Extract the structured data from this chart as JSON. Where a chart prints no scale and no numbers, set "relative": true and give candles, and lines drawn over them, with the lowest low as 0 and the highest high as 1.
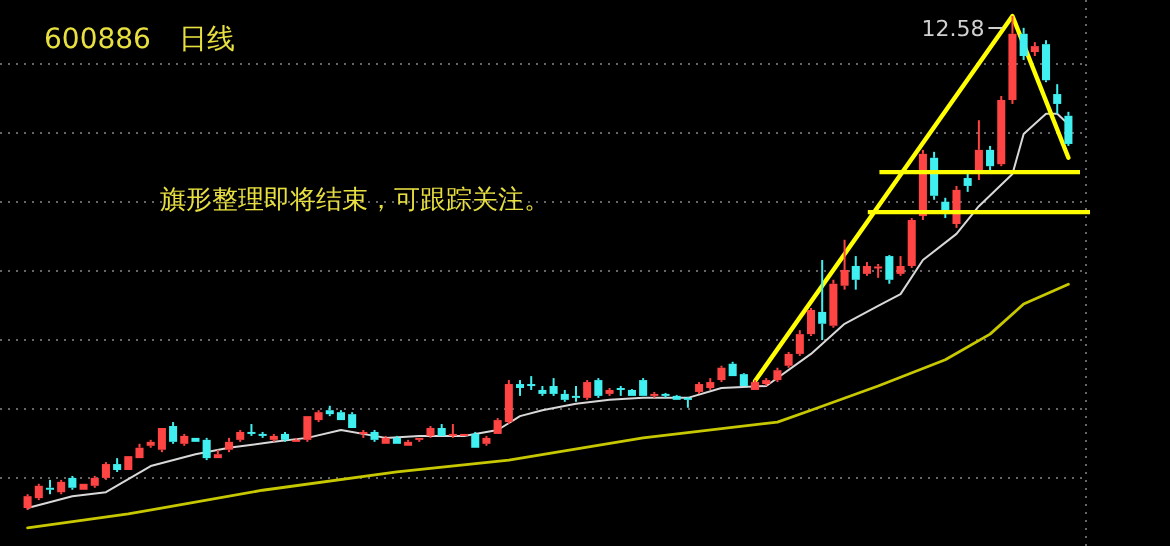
{
  "chart_data": {
    "type": "candlestick",
    "title": "600886　日线",
    "relative": true,
    "grid": true,
    "tick_labels": false,
    "ref_lines": [
      {
        "axis": "y",
        "value": 0.684,
        "color": "#ffff00"
      },
      {
        "axis": "y",
        "value": 0.603,
        "color": "#ffff00"
      }
    ],
    "annotations": [
      "旗形整理即将结束，可跟踪关注。",
      "12.58"
    ],
    "categories": [
      null,
      null,
      null,
      null,
      null,
      null,
      null,
      null,
      null,
      null,
      null,
      null,
      null,
      null,
      null,
      null,
      null,
      null,
      null,
      null,
      null,
      null,
      null,
      null,
      null,
      null,
      null,
      null,
      null,
      null,
      null,
      null,
      null,
      null,
      null,
      null,
      null,
      null,
      null,
      null,
      null,
      null,
      null,
      null,
      null,
      null,
      null,
      null,
      null,
      null,
      null,
      null,
      null,
      null,
      null,
      null,
      null,
      null,
      null,
      null,
      null,
      null,
      null,
      null,
      null,
      null,
      null,
      null,
      null,
      null,
      null,
      null,
      null,
      null,
      null,
      null,
      null,
      null,
      null,
      null,
      null,
      null,
      null,
      null,
      null,
      null,
      null,
      null,
      null,
      null,
      null,
      null,
      null,
      null
    ],
    "ohlc": [
      [
        0.004,
        0.032,
        0,
        0.028
      ],
      [
        0.024,
        0.053,
        0.02,
        0.049
      ],
      [
        0.045,
        0.061,
        0.032,
        0.041
      ],
      [
        0.036,
        0.061,
        0.032,
        0.057
      ],
      [
        0.065,
        0.069,
        0.041,
        0.045
      ],
      [
        0.041,
        0.053,
        0.041,
        0.053
      ],
      [
        0.049,
        0.069,
        0.045,
        0.065
      ],
      [
        0.065,
        0.097,
        0.061,
        0.093
      ],
      [
        0.093,
        0.105,
        0.077,
        0.081
      ],
      [
        0.081,
        0.109,
        0.081,
        0.109
      ],
      [
        0.105,
        0.134,
        0.105,
        0.126
      ],
      [
        0.13,
        0.142,
        0.126,
        0.138
      ],
      [
        0.122,
        0.166,
        0.117,
        0.166
      ],
      [
        0.17,
        0.178,
        0.134,
        0.138
      ],
      [
        0.134,
        0.154,
        0.13,
        0.15
      ],
      [
        0.146,
        0.146,
        0.138,
        0.138
      ],
      [
        0.142,
        0.146,
        0.101,
        0.105
      ],
      [
        0.105,
        0.122,
        0.105,
        0.113
      ],
      [
        0.122,
        0.146,
        0.117,
        0.138
      ],
      [
        0.142,
        0.162,
        0.138,
        0.158
      ],
      [
        0.158,
        0.174,
        0.15,
        0.154
      ],
      [
        0.154,
        0.158,
        0.146,
        0.15
      ],
      [
        0.142,
        0.154,
        0.138,
        0.15
      ],
      [
        0.154,
        0.158,
        0.138,
        0.142
      ],
      [
        0.138,
        0.146,
        0.138,
        0.142
      ],
      [
        0.142,
        0.19,
        0.138,
        0.19
      ],
      [
        0.182,
        0.202,
        0.178,
        0.198
      ],
      [
        0.202,
        0.211,
        0.19,
        0.194
      ],
      [
        0.198,
        0.202,
        0.182,
        0.182
      ],
      [
        0.194,
        0.198,
        0.166,
        0.166
      ],
      [
        0.154,
        0.162,
        0.146,
        0.158
      ],
      [
        0.158,
        0.162,
        0.138,
        0.142
      ],
      [
        0.134,
        0.15,
        0.134,
        0.146
      ],
      [
        0.146,
        0.15,
        0.134,
        0.134
      ],
      [
        0.13,
        0.142,
        0.13,
        0.138
      ],
      [
        0.142,
        0.146,
        0.138,
        0.146
      ],
      [
        0.15,
        0.17,
        0.146,
        0.166
      ],
      [
        0.166,
        0.174,
        0.15,
        0.15
      ],
      [
        0.15,
        0.174,
        0.146,
        0.154
      ],
      [
        0.15,
        0.154,
        0.15,
        0.154
      ],
      [
        0.154,
        0.158,
        0.126,
        0.126
      ],
      [
        0.134,
        0.15,
        0.13,
        0.146
      ],
      [
        0.154,
        0.186,
        0.154,
        0.182
      ],
      [
        0.178,
        0.263,
        0.174,
        0.255
      ],
      [
        0.255,
        0.263,
        0.231,
        0.247
      ],
      [
        0.255,
        0.271,
        0.243,
        0.251
      ],
      [
        0.243,
        0.251,
        0.231,
        0.235
      ],
      [
        0.251,
        0.267,
        0.231,
        0.235
      ],
      [
        0.235,
        0.243,
        0.219,
        0.223
      ],
      [
        0.231,
        0.251,
        0.219,
        0.227
      ],
      [
        0.227,
        0.263,
        0.223,
        0.259
      ],
      [
        0.263,
        0.267,
        0.227,
        0.231
      ],
      [
        0.235,
        0.247,
        0.231,
        0.243
      ],
      [
        0.247,
        0.251,
        0.231,
        0.243
      ],
      [
        0.243,
        0.245,
        0.231,
        0.231
      ],
      [
        0.263,
        0.267,
        0.231,
        0.231
      ],
      [
        0.231,
        0.239,
        0.227,
        0.235
      ],
      [
        0.235,
        0.237,
        0.227,
        0.231
      ],
      [
        0.231,
        0.233,
        0.223,
        0.223
      ],
      [
        0.227,
        0.229,
        0.207,
        0.223
      ],
      [
        0.239,
        0.259,
        0.235,
        0.255
      ],
      [
        0.247,
        0.267,
        0.243,
        0.259
      ],
      [
        0.263,
        0.292,
        0.259,
        0.288
      ],
      [
        0.296,
        0.3,
        0.271,
        0.271
      ],
      [
        0.275,
        0.277,
        0.251,
        0.251
      ],
      [
        0.243,
        0.263,
        0.243,
        0.259
      ],
      [
        0.255,
        0.267,
        0.251,
        0.263
      ],
      [
        0.263,
        0.288,
        0.259,
        0.283
      ],
      [
        0.292,
        0.32,
        0.288,
        0.316
      ],
      [
        0.316,
        0.364,
        0.312,
        0.356
      ],
      [
        0.356,
        0.409,
        0.352,
        0.405
      ],
      [
        0.401,
        0.506,
        0.344,
        0.377
      ],
      [
        0.373,
        0.466,
        0.369,
        0.458
      ],
      [
        0.454,
        0.547,
        0.446,
        0.486
      ],
      [
        0.494,
        0.514,
        0.446,
        0.466
      ],
      [
        0.478,
        0.502,
        0.474,
        0.494
      ],
      [
        0.49,
        0.498,
        0.47,
        0.493
      ],
      [
        0.514,
        0.516,
        0.458,
        0.466
      ],
      [
        0.478,
        0.514,
        0.474,
        0.494
      ],
      [
        0.494,
        0.591,
        0.49,
        0.587
      ],
      [
        0.595,
        0.729,
        0.587,
        0.721
      ],
      [
        0.713,
        0.725,
        0.628,
        0.636
      ],
      [
        0.624,
        0.632,
        0.591,
        0.599
      ],
      [
        0.579,
        0.656,
        0.571,
        0.648
      ],
      [
        0.672,
        0.684,
        0.644,
        0.656
      ],
      [
        0.688,
        0.789,
        0.668,
        0.729
      ],
      [
        0.729,
        0.737,
        0.688,
        0.696
      ],
      [
        0.7,
        0.838,
        0.696,
        0.83
      ],
      [
        0.83,
        1,
        0.822,
        0.964
      ],
      [
        0.964,
        0.976,
        0.911,
        0.919
      ],
      [
        0.927,
        0.947,
        0.919,
        0.939
      ],
      [
        0.943,
        0.951,
        0.866,
        0.87
      ],
      [
        0.842,
        0.862,
        0.802,
        0.822
      ],
      [
        0.798,
        0.806,
        0.737,
        0.741
      ]
    ],
    "series": [
      {
        "type": "line",
        "color": "#d8d8d8",
        "values": [
          0.004,
          null,
          null,
          null,
          0.028,
          null,
          null,
          0.036,
          null,
          null,
          null,
          0.089,
          null,
          null,
          null,
          0.113,
          null,
          null,
          0.126,
          null,
          null,
          null,
          0.138,
          null,
          null,
          0.146,
          null,
          null,
          0.162,
          null,
          null,
          null,
          0.146,
          null,
          null,
          0.15,
          null,
          null,
          null,
          0.15,
          null,
          null,
          0.162,
          null,
          0.19,
          null,
          0.202,
          null,
          null,
          0.215,
          null,
          null,
          0.223,
          null,
          null,
          0.227,
          null,
          null,
          null,
          0.227,
          null,
          null,
          0.247,
          null,
          null,
          null,
          0.251,
          null,
          null,
          null,
          0.316,
          null,
          null,
          0.377,
          null,
          null,
          0.413,
          null,
          0.437,
          null,
          0.506,
          null,
          null,
          0.559,
          null,
          0.615,
          null,
          null,
          0.68,
          0.761,
          null,
          0.802,
          0.802,
          0.781
        ]
      },
      {
        "type": "line",
        "color": "#c8c800",
        "values": [
          -0.036,
          null,
          null,
          null,
          null,
          null,
          null,
          null,
          null,
          -0.008,
          null,
          null,
          null,
          null,
          null,
          null,
          null,
          null,
          null,
          null,
          null,
          0.04,
          null,
          null,
          null,
          null,
          null,
          null,
          null,
          null,
          null,
          null,
          null,
          0.077,
          null,
          null,
          null,
          null,
          null,
          null,
          null,
          null,
          null,
          0.101,
          null,
          null,
          null,
          null,
          null,
          null,
          null,
          null,
          null,
          null,
          null,
          0.146,
          null,
          null,
          null,
          null,
          null,
          null,
          null,
          null,
          null,
          null,
          null,
          0.178,
          null,
          null,
          0.202,
          null,
          null,
          null,
          null,
          null,
          0.251,
          null,
          null,
          null,
          null,
          null,
          0.304,
          null,
          null,
          null,
          0.356,
          null,
          null,
          0.417,
          null,
          null,
          null,
          0.457
        ]
      },
      {
        "type": "line",
        "color": "#ffff00",
        "values": [
          null,
          null,
          null,
          null,
          null,
          null,
          null,
          null,
          null,
          null,
          null,
          null,
          null,
          null,
          null,
          null,
          null,
          null,
          null,
          null,
          null,
          null,
          null,
          null,
          null,
          null,
          null,
          null,
          null,
          null,
          null,
          null,
          null,
          null,
          null,
          null,
          null,
          null,
          null,
          null,
          null,
          null,
          null,
          null,
          null,
          null,
          null,
          null,
          null,
          null,
          null,
          null,
          null,
          null,
          null,
          null,
          null,
          null,
          null,
          null,
          null,
          null,
          null,
          null,
          null,
          0.261,
          null,
          null,
          null,
          null,
          null,
          null,
          null,
          null,
          null,
          null,
          null,
          null,
          null,
          null,
          null,
          null,
          null,
          null,
          null,
          null,
          null,
          null,
          1.0,
          null,
          null,
          null,
          null,
          0.713
        ]
      }
    ]
  }
}
